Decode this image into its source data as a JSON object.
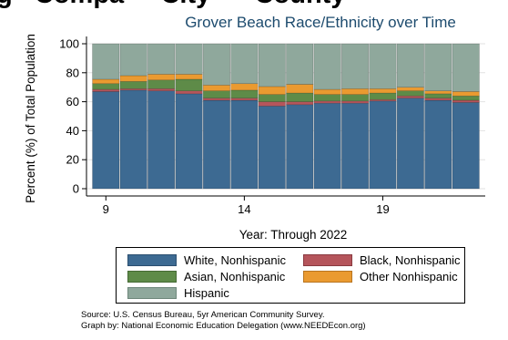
{
  "top_text": "g   Compa     City      County",
  "chart_data": {
    "type": "bar",
    "stacked": true,
    "title": "Grover Beach Race/Ethnicity over Time",
    "xlabel": "Year: Through 2022",
    "ylabel": "Percent (%) of Total Population",
    "x": [
      9,
      10,
      11,
      12,
      13,
      14,
      15,
      16,
      17,
      18,
      19,
      20,
      21,
      22
    ],
    "xticks": [
      9,
      14,
      19
    ],
    "yticks": [
      0,
      20,
      40,
      60,
      80,
      100
    ],
    "ylim": [
      0,
      100
    ],
    "grid": true,
    "series": [
      {
        "name": "White, Nonhispanic",
        "color": "#3d6a92",
        "values": [
          67,
          68,
          67.5,
          65.5,
          61,
          61,
          57,
          58,
          59,
          59,
          60.5,
          62.5,
          61,
          59.5
        ]
      },
      {
        "name": "Black, Nonhispanic",
        "color": "#b5555b",
        "values": [
          1.5,
          1,
          1.5,
          2,
          1.5,
          1.5,
          3,
          2,
          1.5,
          1.5,
          1,
          1.5,
          1.5,
          1.5
        ]
      },
      {
        "name": "Asian, Nonhispanic",
        "color": "#5e8b48",
        "values": [
          4,
          5,
          6,
          8,
          5,
          5.5,
          5,
          6,
          4.5,
          4.5,
          4.5,
          3.5,
          3,
          3
        ]
      },
      {
        "name": "Other Nonhispanic",
        "color": "#ea9a30",
        "values": [
          3,
          4,
          4,
          3.5,
          4,
          4.5,
          5.5,
          6,
          3.5,
          4,
          3,
          2.5,
          2,
          3
        ]
      },
      {
        "name": "Hispanic",
        "color": "#8fa89c",
        "values": [
          24.5,
          22,
          21,
          21,
          28.5,
          27.5,
          29.5,
          28,
          31.5,
          31,
          31,
          30,
          32.5,
          33
        ]
      }
    ],
    "legend": {
      "position": "bottom",
      "columns": 2
    },
    "notes": [
      "Source:  U.S. Census Bureau, 5yr American Community Survey.",
      "Graph by: National Economic Education Delegation (www.NEEDEcon.org)"
    ]
  }
}
